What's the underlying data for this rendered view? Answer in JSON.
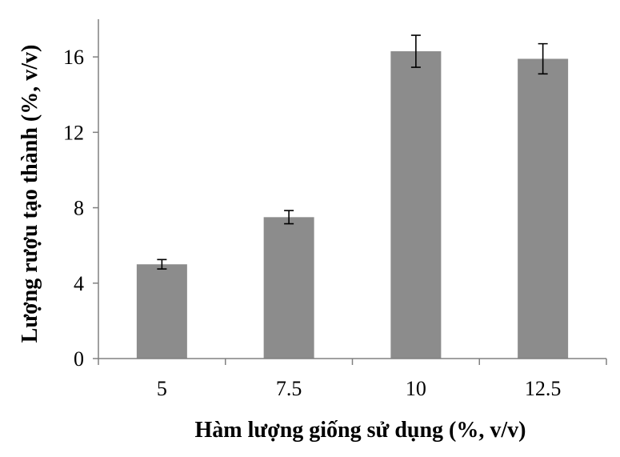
{
  "chart_data": {
    "type": "bar",
    "title": "",
    "xlabel": "Hàm lượng giống sử dụng (%, v/v)",
    "ylabel": "Lượng rượu tạo thành (%, v/v)",
    "categories": [
      "5",
      "7.5",
      "10",
      "12.5"
    ],
    "values": [
      5.0,
      7.5,
      16.3,
      15.9
    ],
    "errors": [
      0.25,
      0.35,
      0.85,
      0.8
    ],
    "ylim": [
      0,
      18
    ],
    "yticks": [
      "0",
      "4",
      "8",
      "12",
      "16"
    ],
    "grid": false,
    "legend": "none",
    "bar_color": "#8c8c8c",
    "axis_color": "#808080"
  }
}
